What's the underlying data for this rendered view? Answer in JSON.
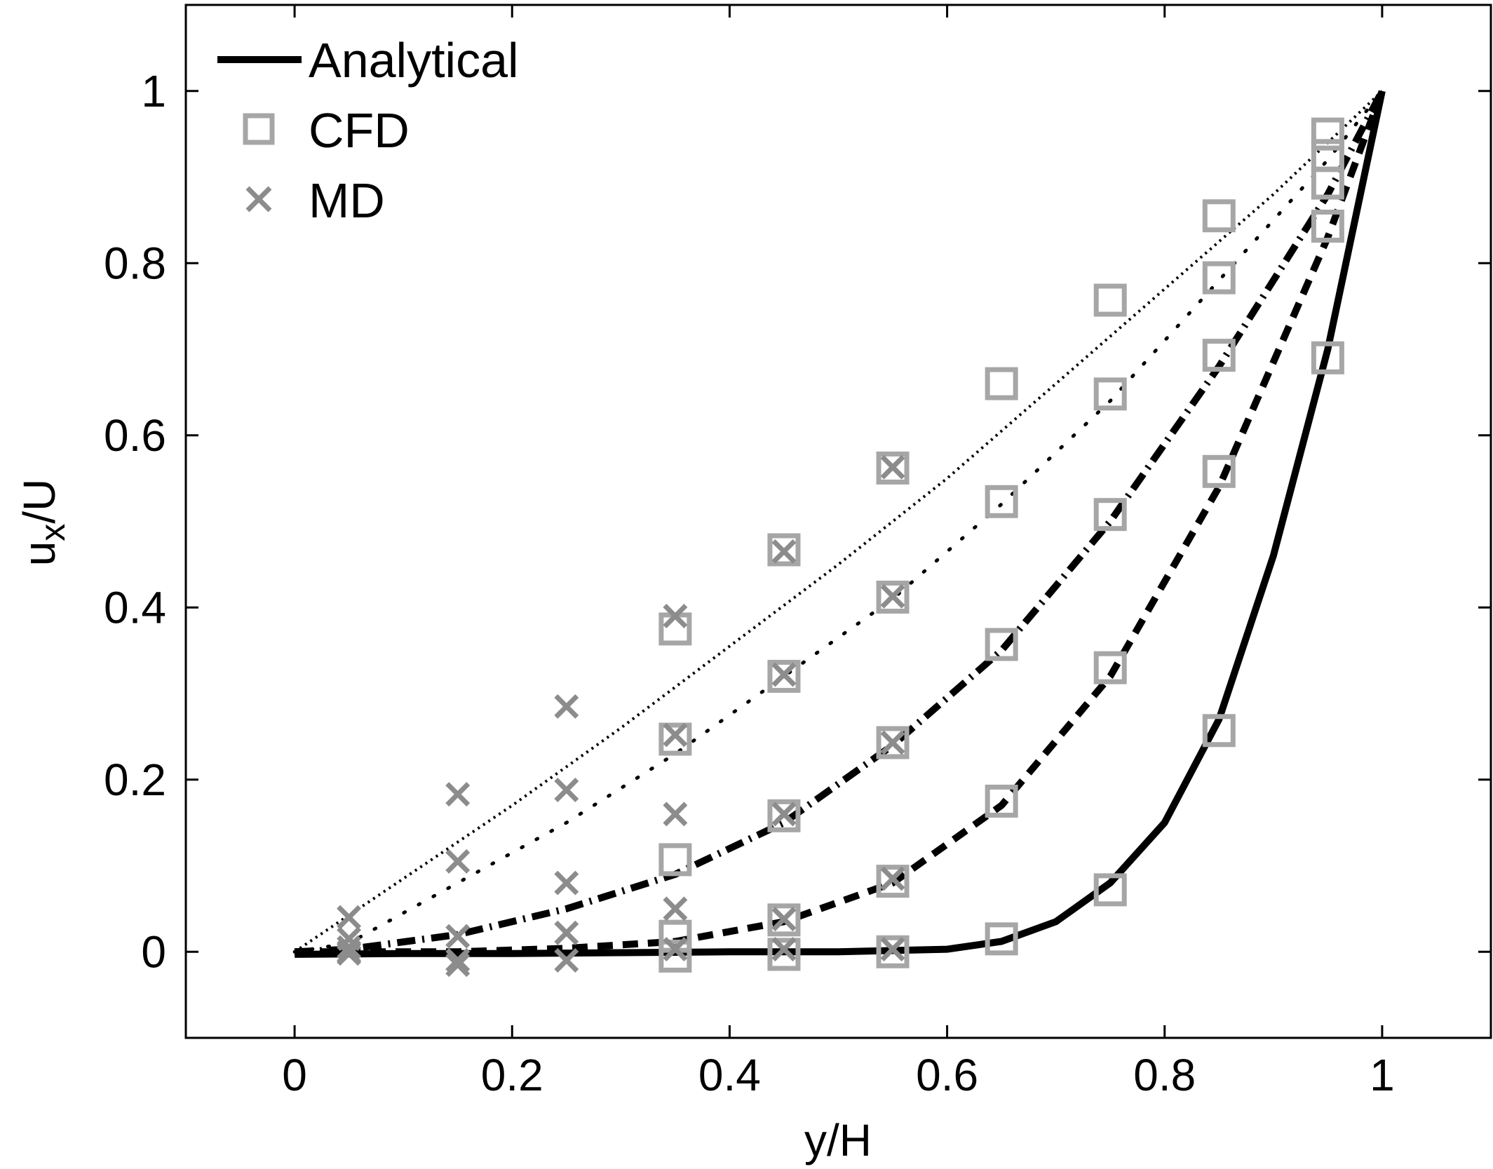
{
  "chart_data": {
    "type": "line",
    "xlabel": "y/H",
    "ylabel_main": "u",
    "ylabel_sub": "x",
    "ylabel_tail": "/U",
    "xlim": [
      -0.1,
      1.1
    ],
    "ylim": [
      -0.1,
      1.1
    ],
    "xticks": [
      "0",
      "0.2",
      "0.4",
      "0.6",
      "0.8",
      "1"
    ],
    "yticks": [
      "0",
      "0.2",
      "0.4",
      "0.6",
      "0.8",
      "1"
    ],
    "grid": false,
    "legend": {
      "location": "top-left",
      "entries": [
        {
          "label": "Analytical",
          "marker": "solid-line"
        },
        {
          "label": "CFD",
          "marker": "square"
        },
        {
          "label": "MD",
          "marker": "x"
        }
      ]
    },
    "colors": {
      "analytical": "#000000",
      "cfd": "#a6a6a6",
      "md": "#8c8c8c"
    },
    "analytical_curves": [
      {
        "style": "thin-dashed",
        "x": [
          0,
          0.1,
          0.2,
          0.3,
          0.4,
          0.5,
          0.6,
          0.7,
          0.8,
          0.9,
          1.0
        ],
        "y": [
          0,
          0.085,
          0.17,
          0.26,
          0.355,
          0.45,
          0.55,
          0.66,
          0.77,
          0.88,
          1.0
        ]
      },
      {
        "style": "dotted",
        "x": [
          0,
          0.05,
          0.15,
          0.25,
          0.35,
          0.45,
          0.55,
          0.65,
          0.75,
          0.85,
          0.95,
          1.0
        ],
        "y": [
          0,
          0.01,
          0.08,
          0.15,
          0.23,
          0.32,
          0.41,
          0.52,
          0.64,
          0.78,
          0.92,
          1.0
        ]
      },
      {
        "style": "dash-dot",
        "x": [
          0,
          0.05,
          0.15,
          0.25,
          0.35,
          0.45,
          0.55,
          0.65,
          0.75,
          0.85,
          0.95,
          1.0
        ],
        "y": [
          0,
          0.003,
          0.02,
          0.05,
          0.09,
          0.15,
          0.24,
          0.35,
          0.5,
          0.68,
          0.88,
          1.0
        ]
      },
      {
        "style": "dashed",
        "x": [
          0,
          0.05,
          0.15,
          0.25,
          0.35,
          0.45,
          0.55,
          0.65,
          0.75,
          0.85,
          0.95,
          1.0
        ],
        "y": [
          0,
          0.0,
          0.0,
          0.004,
          0.012,
          0.035,
          0.08,
          0.17,
          0.32,
          0.54,
          0.83,
          1.0
        ]
      },
      {
        "style": "solid",
        "x": [
          0,
          0.1,
          0.2,
          0.3,
          0.4,
          0.5,
          0.6,
          0.65,
          0.7,
          0.75,
          0.8,
          0.85,
          0.9,
          0.95,
          1.0
        ],
        "y": [
          -0.003,
          -0.002,
          -0.002,
          -0.001,
          0.0,
          0.0,
          0.003,
          0.012,
          0.035,
          0.08,
          0.15,
          0.27,
          0.46,
          0.7,
          1.0
        ]
      }
    ],
    "cfd_points": [
      {
        "x": 0.35,
        "y": 0.375
      },
      {
        "x": 0.45,
        "y": 0.467
      },
      {
        "x": 0.55,
        "y": 0.562
      },
      {
        "x": 0.65,
        "y": 0.66
      },
      {
        "x": 0.75,
        "y": 0.757
      },
      {
        "x": 0.85,
        "y": 0.855
      },
      {
        "x": 0.95,
        "y": 0.95
      },
      {
        "x": 0.35,
        "y": 0.247
      },
      {
        "x": 0.45,
        "y": 0.32
      },
      {
        "x": 0.55,
        "y": 0.412
      },
      {
        "x": 0.65,
        "y": 0.523
      },
      {
        "x": 0.75,
        "y": 0.648
      },
      {
        "x": 0.85,
        "y": 0.783
      },
      {
        "x": 0.95,
        "y": 0.925
      },
      {
        "x": 0.35,
        "y": 0.107
      },
      {
        "x": 0.45,
        "y": 0.158
      },
      {
        "x": 0.55,
        "y": 0.243
      },
      {
        "x": 0.65,
        "y": 0.357
      },
      {
        "x": 0.75,
        "y": 0.508
      },
      {
        "x": 0.85,
        "y": 0.693
      },
      {
        "x": 0.95,
        "y": 0.893
      },
      {
        "x": 0.35,
        "y": 0.018
      },
      {
        "x": 0.45,
        "y": 0.037
      },
      {
        "x": 0.55,
        "y": 0.082
      },
      {
        "x": 0.65,
        "y": 0.175
      },
      {
        "x": 0.75,
        "y": 0.33
      },
      {
        "x": 0.85,
        "y": 0.558
      },
      {
        "x": 0.95,
        "y": 0.843
      },
      {
        "x": 0.35,
        "y": -0.005
      },
      {
        "x": 0.45,
        "y": -0.003
      },
      {
        "x": 0.55,
        "y": 0.0
      },
      {
        "x": 0.65,
        "y": 0.015
      },
      {
        "x": 0.75,
        "y": 0.072
      },
      {
        "x": 0.85,
        "y": 0.257
      },
      {
        "x": 0.95,
        "y": 0.69
      }
    ],
    "md_points": [
      {
        "x": 0.05,
        "y": 0.04
      },
      {
        "x": 0.15,
        "y": 0.183
      },
      {
        "x": 0.25,
        "y": 0.285
      },
      {
        "x": 0.35,
        "y": 0.39
      },
      {
        "x": 0.45,
        "y": 0.465
      },
      {
        "x": 0.55,
        "y": 0.563
      },
      {
        "x": 0.05,
        "y": 0.015
      },
      {
        "x": 0.15,
        "y": 0.105
      },
      {
        "x": 0.25,
        "y": 0.188
      },
      {
        "x": 0.35,
        "y": 0.252
      },
      {
        "x": 0.45,
        "y": 0.322
      },
      {
        "x": 0.55,
        "y": 0.413
      },
      {
        "x": 0.05,
        "y": 0.005
      },
      {
        "x": 0.15,
        "y": 0.018
      },
      {
        "x": 0.25,
        "y": 0.08
      },
      {
        "x": 0.35,
        "y": 0.16
      },
      {
        "x": 0.45,
        "y": 0.16
      },
      {
        "x": 0.55,
        "y": 0.243
      },
      {
        "x": 0.05,
        "y": -0.002
      },
      {
        "x": 0.15,
        "y": -0.01
      },
      {
        "x": 0.25,
        "y": 0.022
      },
      {
        "x": 0.35,
        "y": 0.05
      },
      {
        "x": 0.45,
        "y": 0.038
      },
      {
        "x": 0.55,
        "y": 0.085
      },
      {
        "x": 0.05,
        "y": 0.0
      },
      {
        "x": 0.15,
        "y": -0.015
      },
      {
        "x": 0.25,
        "y": -0.01
      },
      {
        "x": 0.35,
        "y": 0.003
      },
      {
        "x": 0.45,
        "y": 0.003
      },
      {
        "x": 0.55,
        "y": 0.003
      }
    ]
  }
}
